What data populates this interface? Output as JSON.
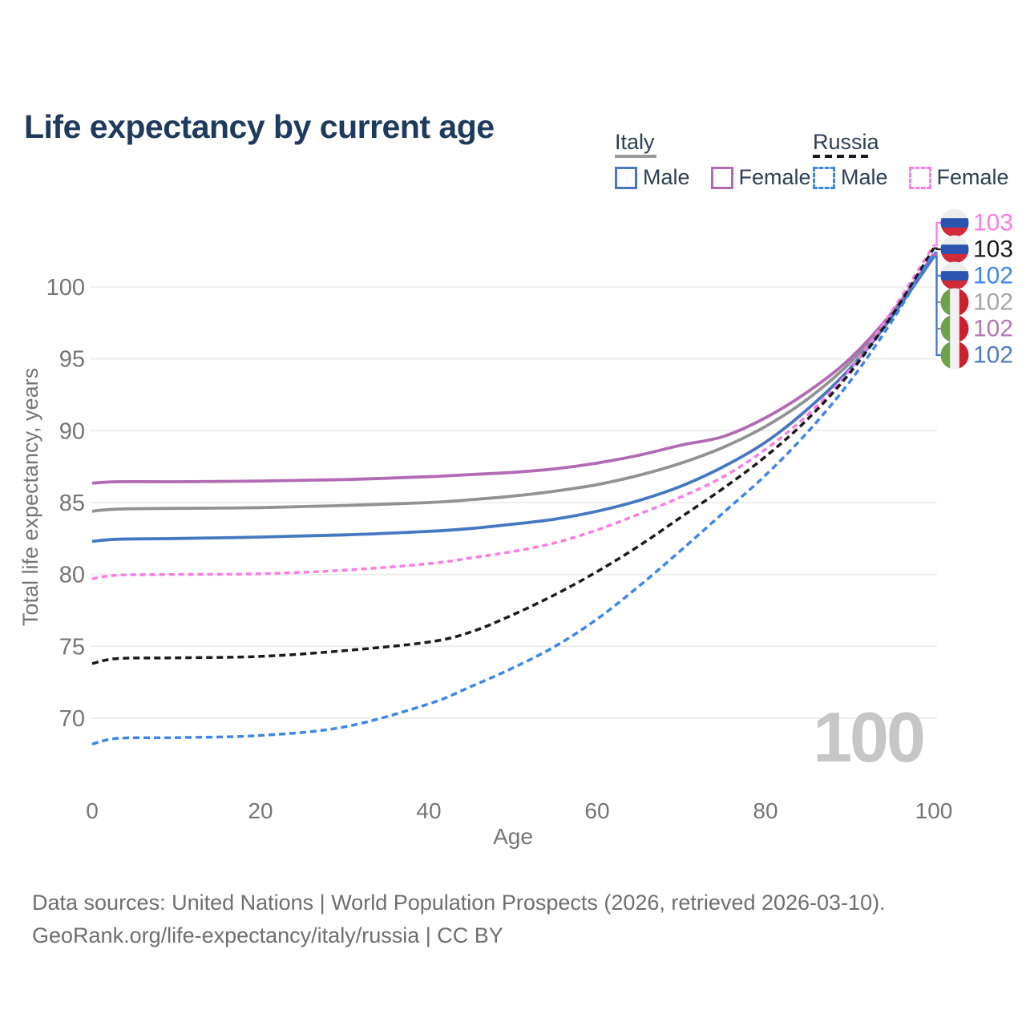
{
  "title": "Life expectancy by current age",
  "watermark": {
    "value": "100"
  },
  "legend": {
    "groups": [
      {
        "name": "Italy",
        "items": [
          {
            "label": "Male",
            "color": "#4678c2",
            "dashed": false
          },
          {
            "label": "Female",
            "color": "#b26ab5",
            "dashed": false
          }
        ]
      },
      {
        "name": "Russia",
        "items": [
          {
            "label": "Male",
            "color": "#3d86ea",
            "dashed": true
          },
          {
            "label": "Female",
            "color": "#fb7ce5",
            "dashed": true
          }
        ]
      }
    ]
  },
  "axes": {
    "x_label": "Age",
    "y_label": "Total life expectancy, years",
    "x_ticks": [
      "0",
      "20",
      "40",
      "60",
      "80",
      "100"
    ],
    "y_ticks": [
      "100",
      "95",
      "90",
      "85",
      "80",
      "75",
      "70"
    ]
  },
  "footer": {
    "line1": "Data sources: United Nations | World Population Prospects (2026, retrieved 2026-03-10).",
    "line2": "GeoRank.org/life-expectancy/italy/russia | CC BY"
  },
  "chart_data": {
    "type": "line",
    "title": "Life expectancy by current age",
    "xlabel": "Age",
    "ylabel": "Total life expectancy, years",
    "x_range": [
      0,
      100
    ],
    "y_range": [
      66,
      104
    ],
    "grid": "horizontal",
    "legend_position": "top-right",
    "ages": [
      0,
      3,
      10,
      20,
      30,
      40,
      45,
      50,
      55,
      60,
      65,
      70,
      75,
      80,
      85,
      90,
      95,
      100
    ],
    "series": [
      {
        "id": "italy-total",
        "country": "Italy",
        "sex": "Both",
        "color": "#929292",
        "dash": null,
        "flag": "it",
        "row": 3,
        "end_value": 102,
        "end_label_color": "#a6a6a6",
        "values": [
          84.4,
          84.55,
          84.6,
          84.65,
          84.8,
          85.0,
          85.2,
          85.45,
          85.8,
          86.25,
          86.9,
          87.75,
          88.85,
          90.3,
          92.2,
          94.7,
          98.0,
          102.2
        ]
      },
      {
        "id": "italy-female",
        "country": "Italy",
        "sex": "Female",
        "color": "#b26ab5",
        "dash": null,
        "flag": "it",
        "row": 4,
        "end_value": 102,
        "end_label_color": "#b277b7",
        "values": [
          86.35,
          86.45,
          86.45,
          86.5,
          86.6,
          86.8,
          86.95,
          87.1,
          87.35,
          87.75,
          88.3,
          89.0,
          89.6,
          90.9,
          92.7,
          95.0,
          98.2,
          102.3
        ]
      },
      {
        "id": "italy-male",
        "country": "Italy",
        "sex": "Male",
        "color": "#4678c2",
        "dash": null,
        "flag": "it",
        "row": 5,
        "end_value": 102,
        "end_label_color": "#4f7ac5",
        "values": [
          82.3,
          82.45,
          82.5,
          82.6,
          82.75,
          83.0,
          83.2,
          83.5,
          83.85,
          84.4,
          85.15,
          86.15,
          87.5,
          89.2,
          91.5,
          94.3,
          97.9,
          102.1
        ]
      },
      {
        "id": "russia-female",
        "country": "Russia",
        "sex": "Female",
        "color": "#fb7ce5",
        "dash": "7 5",
        "flag": "ru",
        "row": 0,
        "end_value": 103,
        "end_label_color": "#fb7ce5",
        "values": [
          79.7,
          79.95,
          80.0,
          80.05,
          80.3,
          80.75,
          81.15,
          81.6,
          82.2,
          83.1,
          84.2,
          85.4,
          86.8,
          88.7,
          91.1,
          94.2,
          98.3,
          102.9
        ]
      },
      {
        "id": "russia-total",
        "country": "Russia",
        "sex": "Both",
        "color": "#1b1b1b",
        "dash": "8 5",
        "flag": "ru",
        "row": 1,
        "end_value": 103,
        "end_label_color": "#1a1a1a",
        "values": [
          73.8,
          74.15,
          74.2,
          74.3,
          74.7,
          75.3,
          76.0,
          77.2,
          78.6,
          80.2,
          82.0,
          84.0,
          86.0,
          88.2,
          90.8,
          94.0,
          98.0,
          102.7
        ]
      },
      {
        "id": "russia-male",
        "country": "Russia",
        "sex": "Male",
        "color": "#3d86ea",
        "dash": "8 5",
        "flag": "ru",
        "row": 2,
        "end_value": 102,
        "end_label_color": "#3d86ea",
        "values": [
          68.2,
          68.6,
          68.65,
          68.8,
          69.4,
          71.0,
          72.2,
          73.5,
          75.0,
          76.9,
          79.2,
          81.7,
          84.3,
          86.9,
          89.9,
          93.4,
          97.6,
          102.4
        ]
      }
    ],
    "flag_colors": {
      "ru": {
        "stripes": [
          "#ededed",
          "#2b54b0",
          "#d12b3a"
        ],
        "direction": "horizontal"
      },
      "it": {
        "stripes": [
          "#6da24c",
          "#f0f0f0",
          "#cb2030"
        ],
        "direction": "vertical"
      }
    }
  }
}
